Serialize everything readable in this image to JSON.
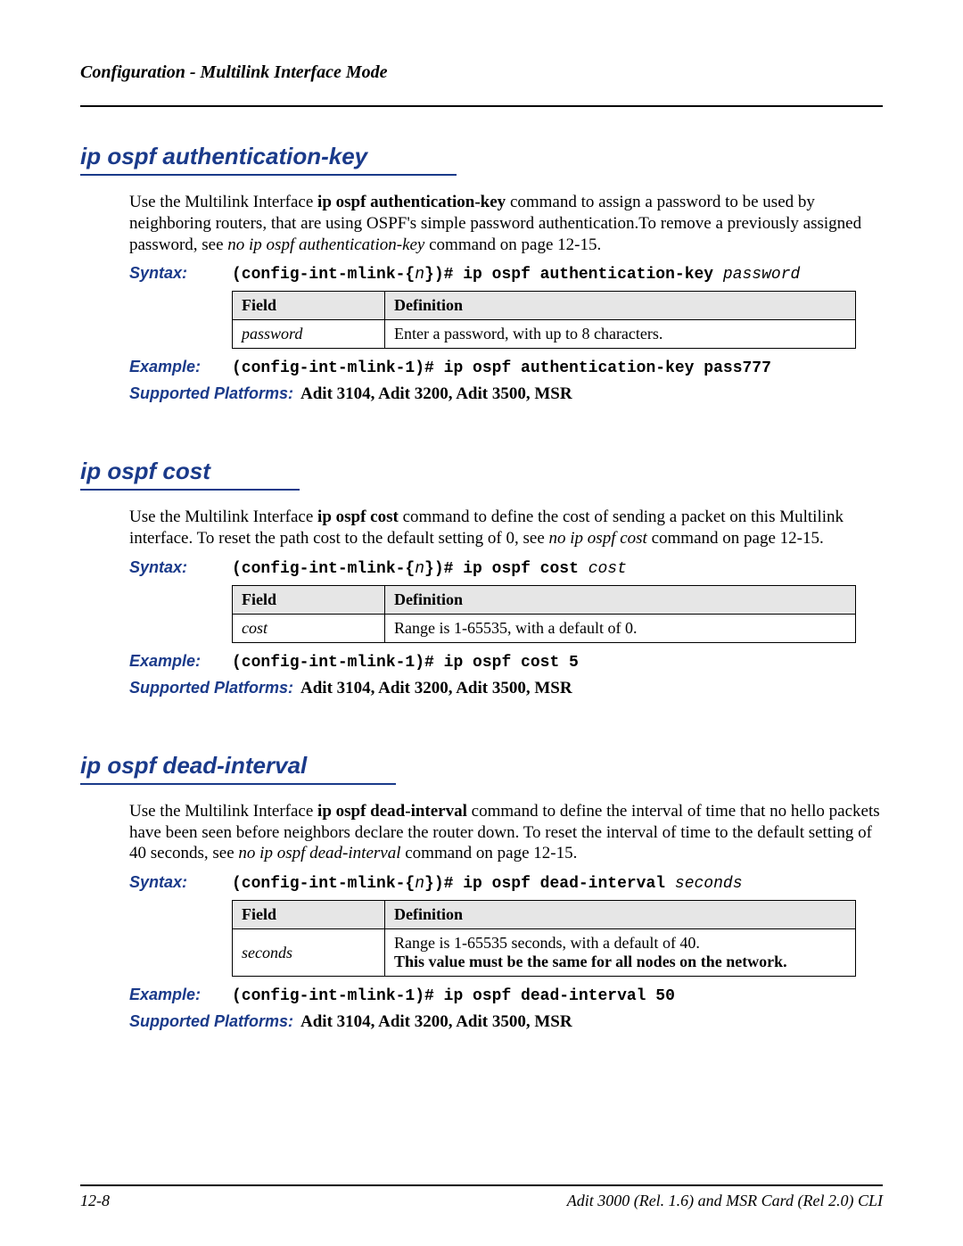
{
  "header": {
    "running": "Configuration - Multilink Interface Mode"
  },
  "labels": {
    "syntax": "Syntax:",
    "example": "Example:",
    "platforms": "Supported Platforms:",
    "field_header": "Field",
    "definition_header": "Definition"
  },
  "sections": [
    {
      "id": "auth-key",
      "title": "ip ospf authentication-key",
      "intro_pre": "Use the Multilink Interface ",
      "intro_bold": "ip ospf authentication-key",
      "intro_mid": " command to assign a password to be used by neighboring routers, that are using OSPF's simple password authentication.To remove a previously assigned password, see ",
      "intro_italic": "no ip ospf authentication-key",
      "intro_post": " command on page 12-15.",
      "syntax_pre": "(config-int-mlink-{",
      "syntax_n": "n",
      "syntax_mid": "})# ip ospf authentication-key ",
      "syntax_param": "password",
      "table": [
        {
          "field": "password",
          "definition": "Enter a password, with up to 8 characters."
        }
      ],
      "example": "(config-int-mlink-1)# ip ospf authentication-key pass777",
      "platforms": "Adit 3104, Adit 3200, Adit 3500, MSR"
    },
    {
      "id": "cost",
      "title": "ip ospf cost",
      "intro_pre": "Use the Multilink Interface ",
      "intro_bold": "ip ospf cost",
      "intro_mid": " command to define the cost of sending a packet on this Multilink interface. To reset the path cost to the default setting of 0, see ",
      "intro_italic": "no ip ospf cost",
      "intro_post": " command on page 12-15.",
      "syntax_pre": "(config-int-mlink-{",
      "syntax_n": "n",
      "syntax_mid": "})# ip ospf cost ",
      "syntax_param": "cost",
      "table": [
        {
          "field": "cost",
          "definition": "Range is 1-65535, with a default of 0."
        }
      ],
      "example": "(config-int-mlink-1)# ip ospf cost 5",
      "platforms": "Adit 3104, Adit 3200, Adit 3500, MSR"
    },
    {
      "id": "dead-interval",
      "title": "ip ospf dead-interval",
      "intro_pre": "Use the Multilink Interface ",
      "intro_bold": "ip ospf dead-interval",
      "intro_mid": " command to define the interval of time that no hello packets have been seen before neighbors declare the router down. To reset the interval of time to the default setting of 40 seconds, see ",
      "intro_italic": "no ip ospf dead-interval",
      "intro_post": " command on page 12-15.",
      "syntax_pre": "(config-int-mlink-{",
      "syntax_n": "n",
      "syntax_mid": "})# ip ospf dead-interval ",
      "syntax_param": "seconds",
      "table": [
        {
          "field": "seconds",
          "definition": "Range is 1-65535 seconds, with a default of 40.",
          "definition_bold": "This value must be the same for all nodes on the network."
        }
      ],
      "example": "(config-int-mlink-1)# ip ospf dead-interval 50",
      "platforms": "Adit 3104, Adit 3200, Adit 3500, MSR"
    }
  ],
  "footer": {
    "left": "12-8",
    "right": "Adit 3000 (Rel. 1.6) and MSR Card (Rel 2.0) CLI"
  }
}
